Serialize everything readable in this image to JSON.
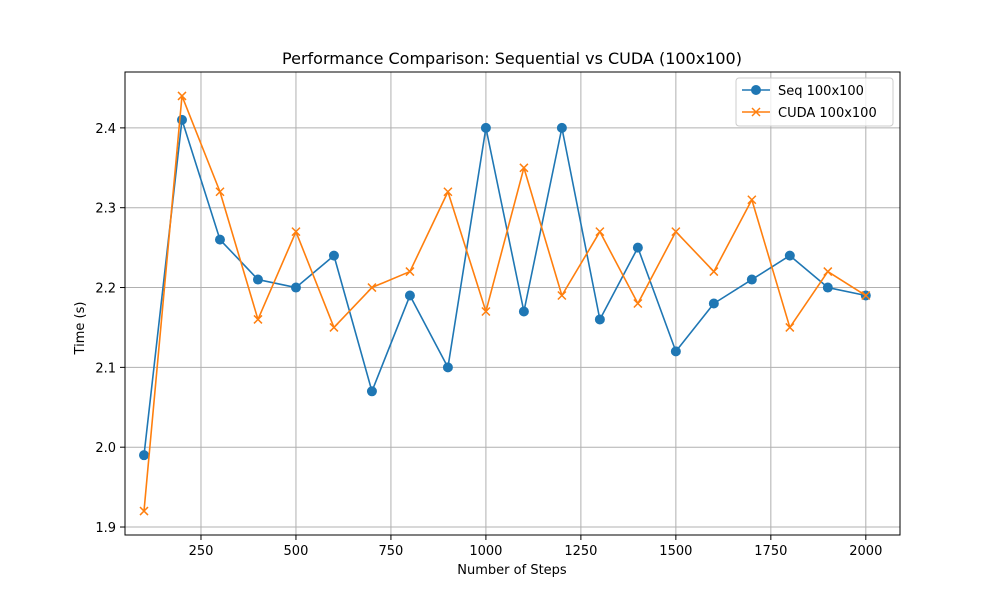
{
  "chart_data": {
    "type": "line",
    "title": "Performance Comparison: Sequential vs CUDA (100x100)",
    "xlabel": "Number of Steps",
    "ylabel": "Time (s)",
    "xlim": [
      50,
      2090
    ],
    "ylim": [
      1.89,
      2.47
    ],
    "x_ticks": [
      250,
      500,
      750,
      1000,
      1250,
      1500,
      1750,
      2000
    ],
    "y_ticks": [
      1.9,
      2.0,
      2.1,
      2.2,
      2.3,
      2.4
    ],
    "grid": true,
    "legend_position": "top-right",
    "x": [
      100,
      200,
      300,
      400,
      500,
      600,
      700,
      800,
      900,
      1000,
      1100,
      1200,
      1300,
      1400,
      1500,
      1600,
      1700,
      1800,
      1900,
      2000
    ],
    "series": [
      {
        "name": "Seq 100x100",
        "color": "#1f77b4",
        "marker": "circle",
        "values": [
          1.99,
          2.41,
          2.26,
          2.21,
          2.2,
          2.24,
          2.07,
          2.19,
          2.1,
          2.4,
          2.17,
          2.4,
          2.16,
          2.25,
          2.12,
          2.18,
          2.21,
          2.24,
          2.2,
          2.19
        ]
      },
      {
        "name": "CUDA 100x100",
        "color": "#ff7f0e",
        "marker": "x",
        "values": [
          1.92,
          2.44,
          2.32,
          2.16,
          2.27,
          2.15,
          2.2,
          2.22,
          2.32,
          2.17,
          2.35,
          2.19,
          2.27,
          2.18,
          2.27,
          2.22,
          2.31,
          2.15,
          2.22,
          2.19
        ]
      }
    ]
  }
}
